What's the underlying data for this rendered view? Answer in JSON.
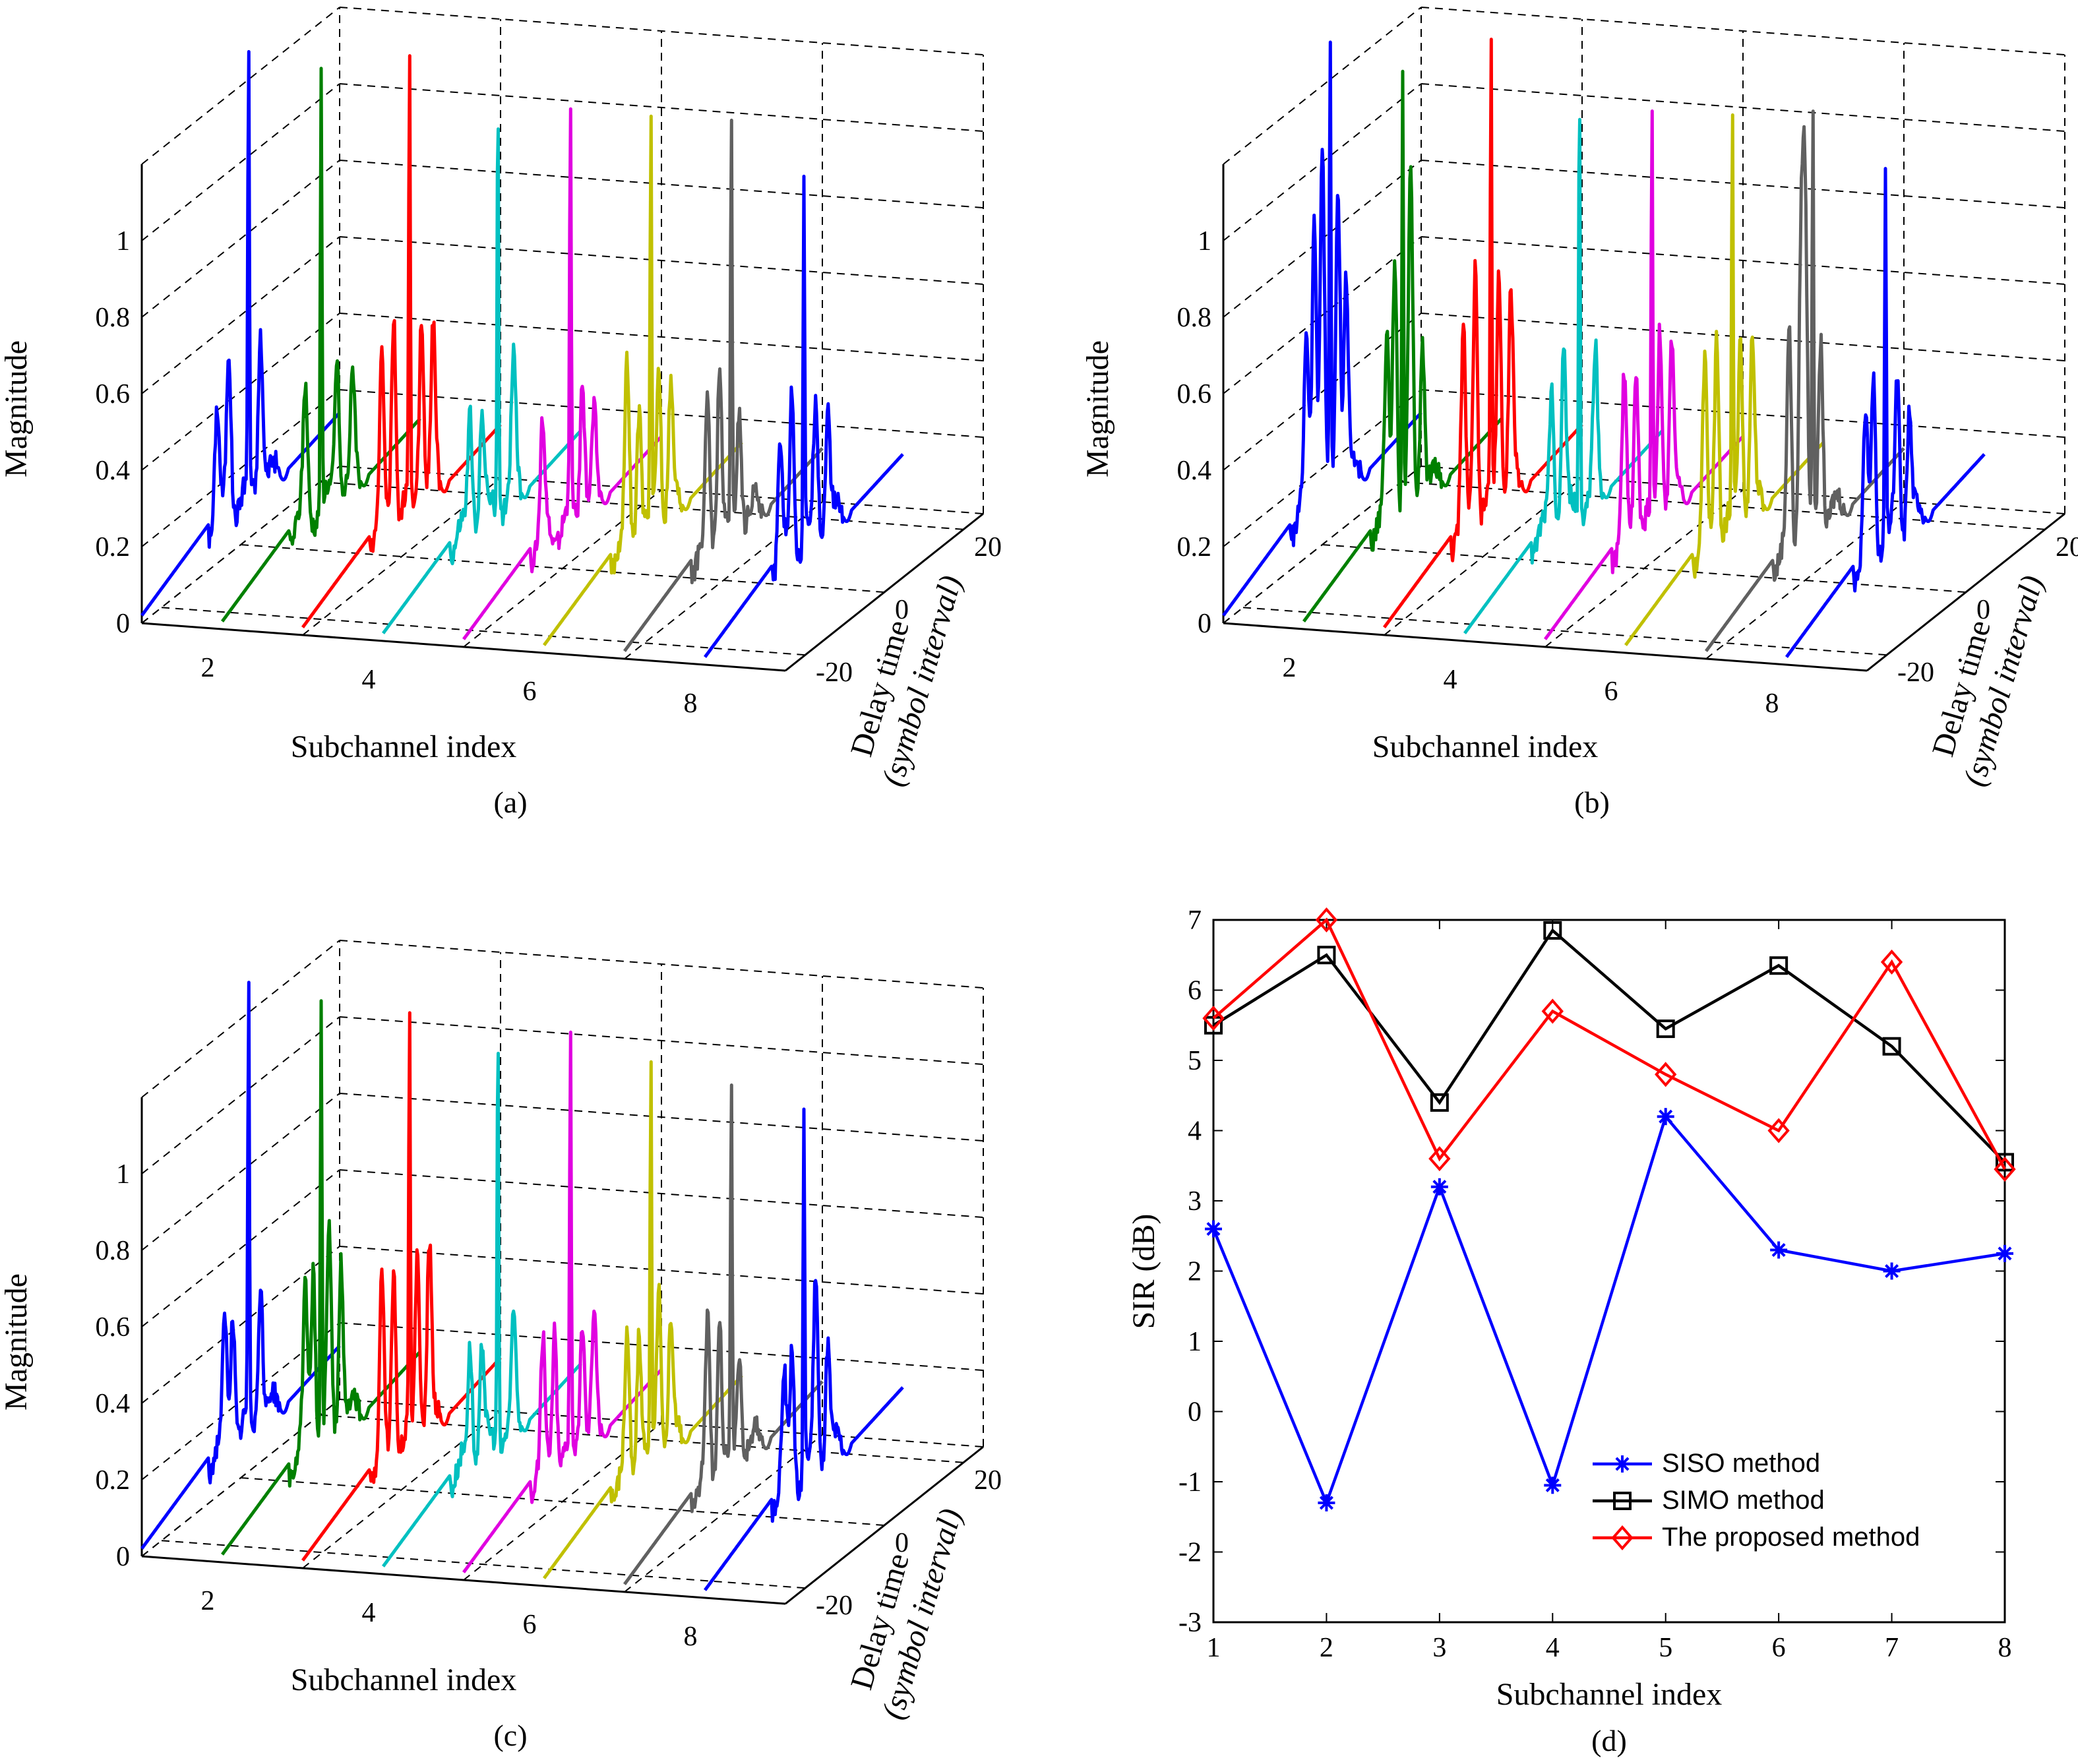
{
  "figure": {
    "panels": [
      "a",
      "b",
      "c",
      "d"
    ],
    "captions": [
      "(a)",
      "(b)",
      "(c)",
      "(d)"
    ]
  },
  "chart_data": [
    {
      "panel": "a",
      "type": "line",
      "projection": "3d-waterfall",
      "title": "",
      "xlabel": "Subchannel index",
      "ylabel_lines": [
        "Delay time",
        "(symbol interval)"
      ],
      "zlabel": "Magnitude",
      "x_ticks": [
        "2",
        "4",
        "6",
        "8"
      ],
      "y_ticks": [
        "-20",
        "0",
        "20"
      ],
      "z_ticks": [
        "0",
        "0.2",
        "0.4",
        "0.6",
        "0.8",
        "1"
      ],
      "zlim": [
        0,
        1.2
      ],
      "delay_range": [
        -25,
        25
      ],
      "grid": true,
      "series": [
        {
          "name": "subchannel 1",
          "color": "#0000ff",
          "peak": 1.15,
          "peak_delay": 2,
          "side_lobes": [
            [
              -6,
              0.28
            ],
            [
              -3,
              0.42
            ],
            [
              5,
              0.42
            ]
          ]
        },
        {
          "name": "subchannel 2",
          "color": "#008000",
          "peak": 1.12,
          "peak_delay": 0,
          "side_lobes": [
            [
              -4,
              0.32
            ],
            [
              4,
              0.38
            ],
            [
              8,
              0.25
            ]
          ]
        },
        {
          "name": "subchannel 3",
          "color": "#ff0000",
          "peak": 1.14,
          "peak_delay": 2,
          "side_lobes": [
            [
              -5,
              0.42
            ],
            [
              -2,
              0.55
            ],
            [
              5,
              0.5
            ],
            [
              8,
              0.4
            ]
          ]
        },
        {
          "name": "subchannel 4",
          "color": "#00c0c0",
          "peak": 1.13,
          "peak_delay": 4,
          "side_lobes": [
            [
              -3,
              0.3
            ],
            [
              0,
              0.28
            ],
            [
              8,
              0.35
            ]
          ]
        },
        {
          "name": "subchannel 5",
          "color": "#e000e0",
          "peak": 1.06,
          "peak_delay": 2,
          "side_lobes": [
            [
              -5,
              0.28
            ],
            [
              5,
              0.35
            ],
            [
              8,
              0.2
            ]
          ]
        },
        {
          "name": "subchannel 6",
          "color": "#c0c000",
          "peak": 1.04,
          "peak_delay": 2,
          "side_lobes": [
            [
              -4,
              0.45
            ],
            [
              -1,
              0.35
            ],
            [
              4,
              0.42
            ],
            [
              7,
              0.3
            ]
          ]
        },
        {
          "name": "subchannel 7",
          "color": "#606060",
          "peak": 1.03,
          "peak_delay": 2,
          "side_lobes": [
            [
              -4,
              0.35
            ],
            [
              -1,
              0.48
            ],
            [
              4,
              0.32
            ]
          ]
        },
        {
          "name": "subchannel 8",
          "color": "#0000ff",
          "peak": 0.94,
          "peak_delay": 0,
          "side_lobes": [
            [
              -6,
              0.3
            ],
            [
              -3,
              0.42
            ],
            [
              3,
              0.35
            ],
            [
              6,
              0.3
            ]
          ]
        }
      ]
    },
    {
      "panel": "b",
      "type": "line",
      "projection": "3d-waterfall",
      "title": "",
      "xlabel": "Subchannel index",
      "ylabel_lines": [
        "Delay time",
        "(symbol interval)"
      ],
      "zlabel": "Magnitude",
      "x_ticks": [
        "2",
        "4",
        "6",
        "8"
      ],
      "y_ticks": [
        "-20",
        "0",
        "20"
      ],
      "z_ticks": [
        "0",
        "0.2",
        "0.4",
        "0.6",
        "0.8",
        "1"
      ],
      "zlim": [
        0,
        1.2
      ],
      "delay_range": [
        -25,
        25
      ],
      "grid": true,
      "series": [
        {
          "name": "subchannel 1",
          "color": "#0000ff",
          "peak": 1.17,
          "peak_delay": 2,
          "side_lobes": [
            [
              -4,
              0.45
            ],
            [
              -2,
              0.78
            ],
            [
              0,
              0.92
            ],
            [
              4,
              0.8
            ],
            [
              6,
              0.55
            ]
          ]
        },
        {
          "name": "subchannel 2",
          "color": "#008000",
          "peak": 1.12,
          "peak_delay": 0,
          "side_lobes": [
            [
              -4,
              0.45
            ],
            [
              -2,
              0.7
            ],
            [
              2,
              0.82
            ],
            [
              5,
              0.42
            ]
          ]
        },
        {
          "name": "subchannel 3",
          "color": "#ff0000",
          "peak": 1.18,
          "peak_delay": 2,
          "side_lobes": [
            [
              -5,
              0.48
            ],
            [
              -2,
              0.68
            ],
            [
              4,
              0.62
            ],
            [
              7,
              0.5
            ]
          ]
        },
        {
          "name": "subchannel 4",
          "color": "#00c0c0",
          "peak": 1.14,
          "peak_delay": 4,
          "side_lobes": [
            [
              -3,
              0.38
            ],
            [
              0,
              0.45
            ],
            [
              8,
              0.35
            ]
          ]
        },
        {
          "name": "subchannel 5",
          "color": "#e000e0",
          "peak": 1.05,
          "peak_delay": 2,
          "side_lobes": [
            [
              -5,
              0.4
            ],
            [
              -2,
              0.45
            ],
            [
              4,
              0.5
            ],
            [
              7,
              0.4
            ]
          ]
        },
        {
          "name": "subchannel 6",
          "color": "#c0c000",
          "peak": 1.04,
          "peak_delay": 2,
          "side_lobes": [
            [
              -5,
              0.45
            ],
            [
              -2,
              0.55
            ],
            [
              4,
              0.5
            ],
            [
              7,
              0.42
            ]
          ]
        },
        {
          "name": "subchannel 7",
          "color": "#606060",
          "peak": 1.05,
          "peak_delay": 2,
          "side_lobes": [
            [
              -4,
              0.55
            ],
            [
              -1,
              0.75
            ],
            [
              0,
              0.85
            ],
            [
              4,
              0.5
            ]
          ]
        },
        {
          "name": "subchannel 8",
          "color": "#0000ff",
          "peak": 0.97,
          "peak_delay": 0,
          "side_lobes": [
            [
              -5,
              0.35
            ],
            [
              -3,
              0.45
            ],
            [
              3,
              0.4
            ],
            [
              6,
              0.3
            ]
          ]
        }
      ]
    },
    {
      "panel": "c",
      "type": "line",
      "projection": "3d-waterfall",
      "title": "",
      "xlabel": "Subchannel index",
      "ylabel_lines": [
        "Delay time",
        "(symbol interval)"
      ],
      "zlabel": "Magnitude",
      "x_ticks": [
        "2",
        "4",
        "6",
        "8"
      ],
      "y_ticks": [
        "-20",
        "0",
        "20"
      ],
      "z_ticks": [
        "0",
        "0.2",
        "0.4",
        "0.6",
        "0.8",
        "1"
      ],
      "zlim": [
        0,
        1.2
      ],
      "delay_range": [
        -25,
        25
      ],
      "grid": true,
      "series": [
        {
          "name": "subchannel 1",
          "color": "#0000ff",
          "peak": 1.15,
          "peak_delay": 2,
          "side_lobes": [
            [
              -4,
              0.3
            ],
            [
              -2,
              0.35
            ],
            [
              5,
              0.38
            ]
          ]
        },
        {
          "name": "subchannel 2",
          "color": "#008000",
          "peak": 1.14,
          "peak_delay": 0,
          "side_lobes": [
            [
              -4,
              0.4
            ],
            [
              -2,
              0.48
            ],
            [
              2,
              0.5
            ],
            [
              5,
              0.45
            ]
          ]
        },
        {
          "name": "subchannel 3",
          "color": "#ff0000",
          "peak": 1.13,
          "peak_delay": 2,
          "side_lobes": [
            [
              -5,
              0.45
            ],
            [
              -2,
              0.5
            ],
            [
              4,
              0.5
            ],
            [
              7,
              0.45
            ]
          ]
        },
        {
          "name": "subchannel 4",
          "color": "#00c0c0",
          "peak": 1.12,
          "peak_delay": 4,
          "side_lobes": [
            [
              -3,
              0.3
            ],
            [
              0,
              0.28
            ],
            [
              8,
              0.25
            ]
          ]
        },
        {
          "name": "subchannel 5",
          "color": "#e000e0",
          "peak": 1.08,
          "peak_delay": 2,
          "side_lobes": [
            [
              -5,
              0.32
            ],
            [
              -2,
              0.38
            ],
            [
              5,
              0.35
            ],
            [
              8,
              0.3
            ]
          ]
        },
        {
          "name": "subchannel 6",
          "color": "#c0c000",
          "peak": 1.0,
          "peak_delay": 2,
          "side_lobes": [
            [
              -4,
              0.35
            ],
            [
              -1,
              0.38
            ],
            [
              4,
              0.45
            ],
            [
              7,
              0.3
            ]
          ]
        },
        {
          "name": "subchannel 7",
          "color": "#606060",
          "peak": 1.0,
          "peak_delay": 2,
          "side_lobes": [
            [
              -4,
              0.4
            ],
            [
              -1,
              0.45
            ],
            [
              4,
              0.3
            ]
          ]
        },
        {
          "name": "subchannel 8",
          "color": "#0000ff",
          "peak": 0.96,
          "peak_delay": 0,
          "side_lobes": [
            [
              -5,
              0.28
            ],
            [
              -3,
              0.35
            ],
            [
              3,
              0.5
            ],
            [
              6,
              0.3
            ]
          ]
        }
      ]
    },
    {
      "panel": "d",
      "type": "line",
      "title": "",
      "xlabel": "Subchannel index",
      "ylabel": "SIR (dB)",
      "x": [
        1,
        2,
        3,
        4,
        5,
        6,
        7,
        8
      ],
      "x_ticks": [
        "1",
        "2",
        "3",
        "4",
        "5",
        "6",
        "7",
        "8"
      ],
      "y_ticks": [
        "-3",
        "-2",
        "-1",
        "0",
        "1",
        "2",
        "3",
        "4",
        "5",
        "6",
        "7"
      ],
      "xlim": [
        1,
        8
      ],
      "ylim": [
        -3,
        7
      ],
      "grid": false,
      "legend_position": "bottom-right",
      "series": [
        {
          "name": "SISO method",
          "color": "#0000ff",
          "marker": "asterisk",
          "values": [
            2.6,
            -1.3,
            3.2,
            -1.05,
            4.2,
            2.3,
            2.0,
            2.25
          ]
        },
        {
          "name": "SIMO method",
          "color": "#000000",
          "marker": "square",
          "values": [
            5.5,
            6.5,
            4.4,
            6.85,
            5.45,
            6.35,
            5.2,
            3.55
          ]
        },
        {
          "name": "The proposed method",
          "color": "#ff0000",
          "marker": "diamond",
          "values": [
            5.6,
            7.0,
            3.6,
            5.7,
            4.8,
            4.0,
            6.4,
            3.45
          ]
        }
      ]
    }
  ]
}
